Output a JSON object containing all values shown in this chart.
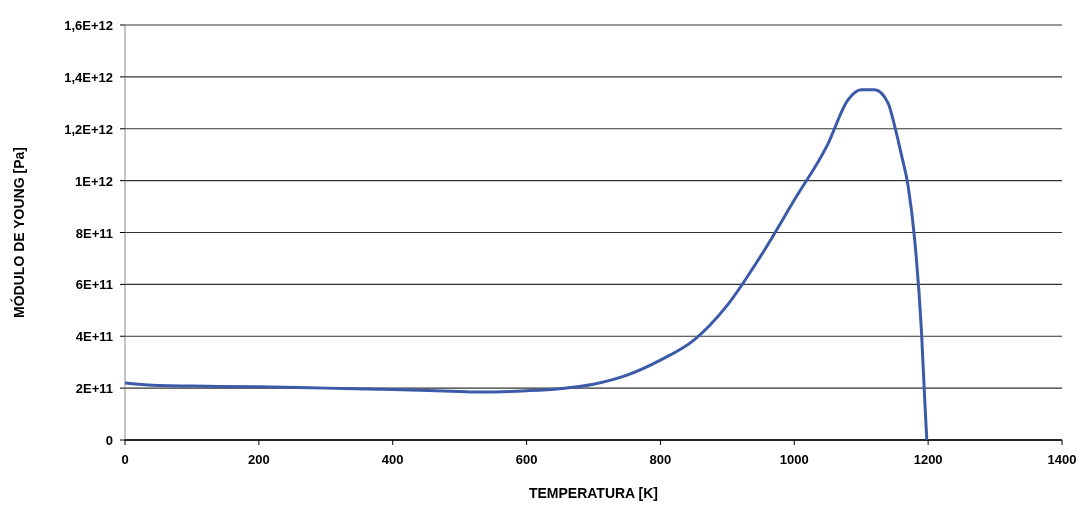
{
  "chart_data": {
    "type": "line",
    "xlabel": "TEMPERATURA [K]",
    "ylabel": "MÓDULO DE YOUNG [Pa]",
    "x": [
      0,
      50,
      100,
      200,
      300,
      400,
      500,
      530,
      600,
      650,
      700,
      750,
      800,
      850,
      900,
      950,
      1000,
      1050,
      1080,
      1100,
      1120,
      1140,
      1150,
      1160,
      1170,
      1180,
      1190,
      1195,
      1198
    ],
    "series": [
      {
        "color": "#3b5ba9",
        "values": [
          220000000000.0,
          210000000000.0,
          208000000000.0,
          205000000000.0,
          200000000000.0,
          195000000000.0,
          187000000000.0,
          185000000000.0,
          190000000000.0,
          198000000000.0,
          215000000000.0,
          250000000000.0,
          308000000000.0,
          385000000000.0,
          520000000000.0,
          710000000000.0,
          925000000000.0,
          1140000000000.0,
          1310000000000.0,
          1350000000000.0,
          1350000000000.0,
          1300000000000.0,
          1210000000000.0,
          1100000000000.0,
          980000000000.0,
          770000000000.0,
          420000000000.0,
          150000000000.0,
          0
        ]
      }
    ],
    "xlim": [
      0,
      1400
    ],
    "xticks": [
      0,
      200,
      400,
      600,
      800,
      1000,
      1200,
      1400
    ],
    "ylim": [
      0,
      1600000000000.0
    ],
    "yticks": [
      {
        "value": 0,
        "label": "0"
      },
      {
        "value": 200000000000.0,
        "label": "2E+11"
      },
      {
        "value": 400000000000.0,
        "label": "4E+11"
      },
      {
        "value": 600000000000.0,
        "label": "6E+11"
      },
      {
        "value": 800000000000.0,
        "label": "8E+11"
      },
      {
        "value": 1000000000000.0,
        "label": "1E+12"
      },
      {
        "value": 1200000000000.0,
        "label": "1,2E+12"
      },
      {
        "value": 1400000000000.0,
        "label": "1,4E+12"
      },
      {
        "value": 1600000000000.0,
        "label": "1,6E+12"
      }
    ],
    "grid": "y",
    "marker": "none",
    "line_style": "solid"
  }
}
